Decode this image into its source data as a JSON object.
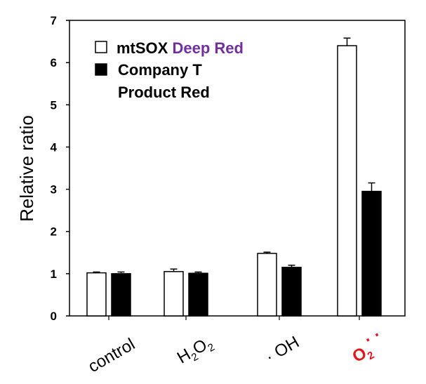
{
  "chart_data": {
    "type": "bar",
    "ylabel": "Relative ratio",
    "xlabel": "",
    "ylim": [
      0,
      7
    ],
    "yticks": [
      0,
      1,
      2,
      3,
      4,
      5,
      6,
      7
    ],
    "grid": false,
    "legend_position": "top-left",
    "categories": [
      "control",
      "H2O2",
      "· OH",
      "O2·⁻"
    ],
    "category_parts": [
      {
        "main": "control",
        "sub": "",
        "main2": "",
        "sub2": "",
        "sup": "",
        "color": "#000000"
      },
      {
        "main": "H",
        "sub": "2",
        "main2": "O",
        "sub2": "2",
        "sup": "",
        "color": "#000000"
      },
      {
        "main": "· OH",
        "sub": "",
        "main2": "",
        "sub2": "",
        "sup": "",
        "color": "#000000"
      },
      {
        "main": "O",
        "sub": "2",
        "main2": "",
        "sub2": "",
        "sup": "· ·",
        "color": "#e8141b"
      }
    ],
    "series": [
      {
        "name": "mtSOX Deep Red",
        "name_part1": "mtSOX",
        "name_part2": "Deep Red",
        "name_part2_color": "#7030a0",
        "fill": "#ffffff",
        "values": [
          1.02,
          1.05,
          1.48,
          6.4
        ],
        "errors": [
          0.02,
          0.06,
          0.03,
          0.18
        ]
      },
      {
        "name": "Company T Product Red",
        "name_line1": "Company T",
        "name_line2": "Product Red",
        "fill": "#000000",
        "values": [
          1.0,
          1.01,
          1.15,
          2.95
        ],
        "errors": [
          0.04,
          0.03,
          0.05,
          0.2
        ]
      }
    ]
  }
}
